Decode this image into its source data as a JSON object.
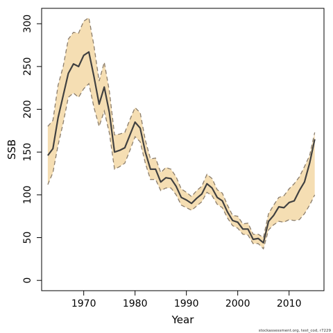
{
  "chart_data": {
    "type": "area",
    "xlabel": "Year",
    "ylabel": "SSB",
    "xlim": [
      1961.8,
      2016.8
    ],
    "ylim": [
      -12,
      318
    ],
    "x_ticks": [
      1970,
      1980,
      1990,
      2000,
      2010
    ],
    "y_ticks": [
      0,
      50,
      100,
      150,
      200,
      250,
      300
    ],
    "grid": false,
    "series": [
      {
        "x": [
          1963,
          1964,
          1965,
          1966,
          1967,
          1968,
          1969,
          1970,
          1971,
          1972,
          1973,
          1974,
          1975,
          1976,
          1977,
          1978,
          1979,
          1980,
          1981,
          1982,
          1983,
          1984,
          1985,
          1986,
          1987,
          1988,
          1989,
          1990,
          1991,
          1992,
          1993,
          1994,
          1995,
          1996,
          1997,
          1998,
          1999,
          2000,
          2001,
          2002,
          2003,
          2004,
          2005,
          2006,
          2007,
          2008,
          2009,
          2010,
          2011,
          2012,
          2013,
          2014,
          2015
        ],
        "estimate": [
          146,
          154,
          190,
          216,
          242,
          253,
          250,
          263,
          267,
          238,
          206,
          226,
          196,
          150,
          152,
          155,
          170,
          185,
          178,
          150,
          130,
          130,
          115,
          120,
          119,
          110,
          97,
          94,
          90,
          96,
          101,
          113,
          108,
          97,
          93,
          80,
          70,
          68,
          60,
          60,
          48,
          49,
          44,
          69,
          76,
          86,
          85,
          91,
          93,
          105,
          115,
          137,
          165
        ],
        "lower": [
          112,
          126,
          158,
          184,
          214,
          219,
          214,
          224,
          230,
          202,
          180,
          198,
          172,
          130,
          133,
          137,
          152,
          168,
          162,
          137,
          118,
          118,
          105,
          108,
          108,
          100,
          88,
          85,
          82,
          87,
          92,
          103,
          99,
          89,
          85,
          73,
          64,
          61,
          54,
          53,
          43,
          43,
          37,
          59,
          65,
          69,
          68,
          71,
          70,
          71,
          78,
          88,
          100
        ],
        "upper": [
          180,
          187,
          228,
          250,
          282,
          290,
          289,
          303,
          307,
          274,
          233,
          255,
          221,
          170,
          171,
          173,
          188,
          202,
          196,
          164,
          142,
          143,
          126,
          132,
          130,
          121,
          107,
          103,
          98,
          105,
          110,
          124,
          119,
          106,
          102,
          88,
          76,
          75,
          66,
          67,
          54,
          54,
          50,
          78,
          88,
          97,
          99,
          107,
          113,
          121,
          133,
          146,
          173
        ]
      }
    ],
    "colors": {
      "band": "#f5deb3",
      "estimate_line": "#404040",
      "bound_line": "#8b7d6b"
    }
  },
  "footer": "stockassessment.org, test_cod, r7229"
}
